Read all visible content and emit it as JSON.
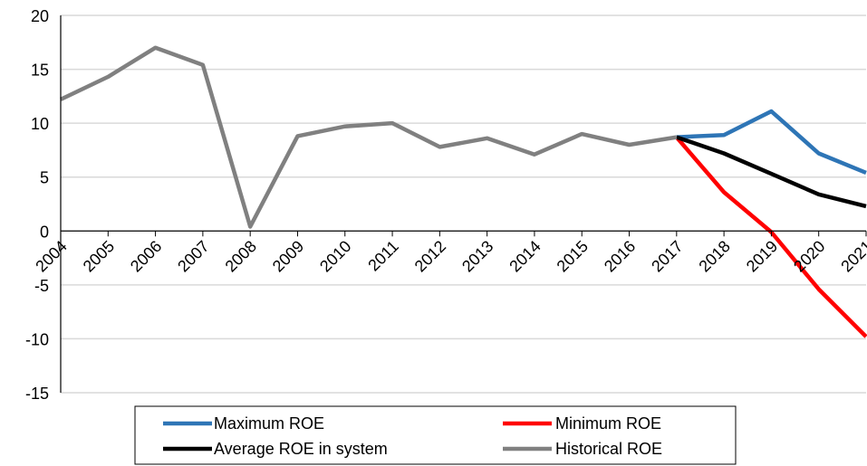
{
  "chart_data": {
    "type": "line",
    "x": [
      "2004",
      "2005",
      "2006",
      "2007",
      "2008",
      "2009",
      "2010",
      "2011",
      "2012",
      "2013",
      "2014",
      "2015",
      "2016",
      "2017",
      "2018",
      "2019",
      "2020",
      "2021"
    ],
    "ylim": [
      -15,
      20
    ],
    "yticks": [
      -15,
      -10,
      -5,
      0,
      5,
      10,
      15,
      20
    ],
    "grid": "horizontal",
    "legend_position": "bottom",
    "series": [
      {
        "name": "Maximum ROE",
        "color": "#2e75b6",
        "values": [
          null,
          null,
          null,
          null,
          null,
          null,
          null,
          null,
          null,
          null,
          null,
          null,
          null,
          8.7,
          8.9,
          11.1,
          7.2,
          5.4
        ]
      },
      {
        "name": "Minimum ROE",
        "color": "#ff0000",
        "values": [
          null,
          null,
          null,
          null,
          null,
          null,
          null,
          null,
          null,
          null,
          null,
          null,
          null,
          8.7,
          3.6,
          -0.1,
          -5.4,
          -9.8
        ]
      },
      {
        "name": "Average ROE in system",
        "color": "#000000",
        "values": [
          null,
          null,
          null,
          null,
          null,
          null,
          null,
          null,
          null,
          null,
          null,
          null,
          null,
          8.7,
          7.2,
          5.3,
          3.4,
          2.3
        ]
      },
      {
        "name": "Historical ROE",
        "color": "#808080",
        "values": [
          12.2,
          14.3,
          17.0,
          15.4,
          0.4,
          8.8,
          9.7,
          10.0,
          7.8,
          8.6,
          7.1,
          9.0,
          8.0,
          8.7,
          null,
          null,
          null,
          null
        ]
      }
    ]
  }
}
